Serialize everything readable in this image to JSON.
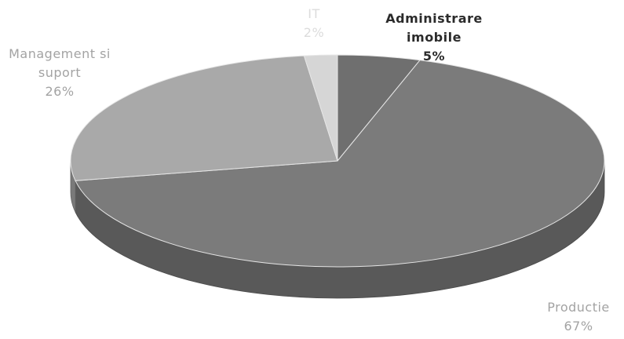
{
  "chart_data": {
    "type": "pie",
    "title": "",
    "slices": [
      {
        "label": "Administrare imobile",
        "label_lines": [
          "Administrare",
          "imobile"
        ],
        "value": 5,
        "pct_label": "5%",
        "color": "#6f6f6f"
      },
      {
        "label": "Productie",
        "label_lines": [
          "Productie"
        ],
        "value": 67,
        "pct_label": "67%",
        "color": "#7b7b7b"
      },
      {
        "label": "Management si suport",
        "label_lines": [
          "Management si",
          "suport"
        ],
        "value": 26,
        "pct_label": "26%",
        "color": "#a9a9a9"
      },
      {
        "label": "IT",
        "label_lines": [
          "IT"
        ],
        "value": 2,
        "pct_label": "2%",
        "color": "#d6d6d6"
      }
    ],
    "legend": "none",
    "style": "3d"
  }
}
